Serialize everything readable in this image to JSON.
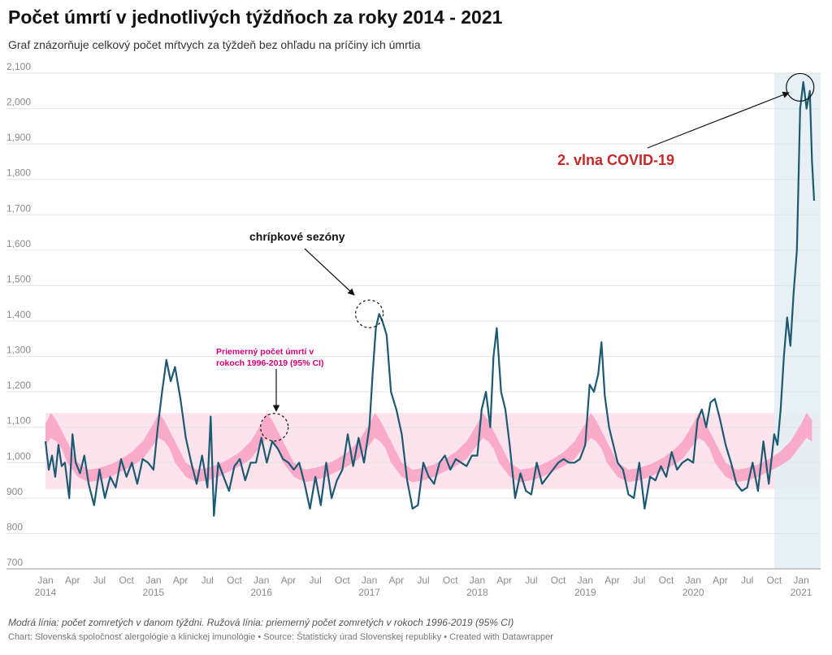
{
  "title": "Počet úmrtí v jednotlivých týždňoch za roky 2014 - 2021",
  "subtitle": "Graf znázorňuje celkový počet mŕtvych za týždeň bez ohľadu na príčiny ich úmrtia",
  "footer": {
    "note": "Modrá línia: počet zomretých v danom týždni. Ružová línia: priemerný počet zomretých v rokoch 1996-2019 (95% CI)",
    "credit": "Chart: Slovenská spoločnosť alergológie a klinickej imunológie • Source: Štatistický úrad Slovenskej republiky • Created with Datawrapper"
  },
  "annotations": {
    "flu": "chrípkové sezóny",
    "covid": "2. vlna COVID-19",
    "avg_line1": "Priemerný počet úmrtí v",
    "avg_line2": "rokoch 1996-2019 (95% CI)"
  },
  "colors": {
    "weekly_line": "#1b5a72",
    "ci_band": "#f9a8c7",
    "range_band": "#fde3ec",
    "covid_shade": "#e4eef4",
    "covid_text": "#c62828",
    "avg_text": "#d6007a"
  },
  "chart_data": {
    "type": "line",
    "ylim": [
      700,
      2100
    ],
    "yticks": [
      700,
      800,
      900,
      1000,
      1100,
      1200,
      1300,
      1400,
      1500,
      1600,
      1700,
      1800,
      1900,
      2000,
      2100
    ],
    "ytick_labels": [
      "700",
      "800",
      "900",
      "1,000",
      "1,100",
      "1,200",
      "1,300",
      "1,400",
      "1,500",
      "1,600",
      "1,700",
      "1,800",
      "1,900",
      "2,000",
      "2,100"
    ],
    "xrange": [
      2014.0,
      2021.18
    ],
    "xticks": [
      {
        "label": "Jan",
        "sub": "2014"
      },
      {
        "label": "Apr",
        "sub": ""
      },
      {
        "label": "Jul",
        "sub": ""
      },
      {
        "label": "Oct",
        "sub": ""
      },
      {
        "label": "Jan",
        "sub": "2015"
      },
      {
        "label": "Apr",
        "sub": ""
      },
      {
        "label": "Jul",
        "sub": ""
      },
      {
        "label": "Oct",
        "sub": ""
      },
      {
        "label": "Jan",
        "sub": "2016"
      },
      {
        "label": "Apr",
        "sub": ""
      },
      {
        "label": "Jul",
        "sub": ""
      },
      {
        "label": "Oct",
        "sub": ""
      },
      {
        "label": "Jan",
        "sub": "2017"
      },
      {
        "label": "Apr",
        "sub": ""
      },
      {
        "label": "Jul",
        "sub": ""
      },
      {
        "label": "Oct",
        "sub": ""
      },
      {
        "label": "Jan",
        "sub": "2018"
      },
      {
        "label": "Apr",
        "sub": ""
      },
      {
        "label": "Jul",
        "sub": ""
      },
      {
        "label": "Oct",
        "sub": ""
      },
      {
        "label": "Jan",
        "sub": "2019"
      },
      {
        "label": "Apr",
        "sub": ""
      },
      {
        "label": "Jul",
        "sub": ""
      },
      {
        "label": "Oct",
        "sub": ""
      },
      {
        "label": "Jan",
        "sub": "2020"
      },
      {
        "label": "Apr",
        "sub": ""
      },
      {
        "label": "Jul",
        "sub": ""
      },
      {
        "label": "Oct",
        "sub": ""
      },
      {
        "label": "Jan",
        "sub": "2021"
      }
    ],
    "covid_shaded_from": 2020.75,
    "ci_outer_range": [
      925,
      1140
    ],
    "series": [
      {
        "name": "Modrá línia: počet zomretých v danom týždni",
        "x": [
          2014.0,
          2014.03,
          2014.06,
          2014.09,
          2014.12,
          2014.15,
          2014.18,
          2014.22,
          2014.25,
          2014.28,
          2014.32,
          2014.36,
          2014.4,
          2014.45,
          2014.5,
          2014.55,
          2014.6,
          2014.65,
          2014.7,
          2014.75,
          2014.8,
          2014.85,
          2014.9,
          2014.95,
          2015.0,
          2015.04,
          2015.08,
          2015.12,
          2015.16,
          2015.2,
          2015.25,
          2015.3,
          2015.35,
          2015.4,
          2015.45,
          2015.5,
          2015.53,
          2015.56,
          2015.6,
          2015.65,
          2015.7,
          2015.75,
          2015.8,
          2015.85,
          2015.9,
          2015.95,
          2016.0,
          2016.05,
          2016.1,
          2016.15,
          2016.2,
          2016.25,
          2016.3,
          2016.35,
          2016.4,
          2016.45,
          2016.5,
          2016.55,
          2016.6,
          2016.65,
          2016.7,
          2016.75,
          2016.8,
          2016.85,
          2016.9,
          2016.95,
          2017.0,
          2017.03,
          2017.06,
          2017.09,
          2017.12,
          2017.16,
          2017.2,
          2017.25,
          2017.3,
          2017.35,
          2017.4,
          2017.45,
          2017.5,
          2017.55,
          2017.6,
          2017.65,
          2017.7,
          2017.75,
          2017.8,
          2017.85,
          2017.9,
          2017.95,
          2018.0,
          2018.04,
          2018.08,
          2018.12,
          2018.15,
          2018.18,
          2018.22,
          2018.26,
          2018.3,
          2018.35,
          2018.4,
          2018.45,
          2018.5,
          2018.55,
          2018.6,
          2018.65,
          2018.7,
          2018.75,
          2018.8,
          2018.85,
          2018.9,
          2018.95,
          2019.0,
          2019.04,
          2019.08,
          2019.12,
          2019.15,
          2019.18,
          2019.22,
          2019.26,
          2019.3,
          2019.35,
          2019.4,
          2019.45,
          2019.5,
          2019.55,
          2019.6,
          2019.65,
          2019.7,
          2019.75,
          2019.8,
          2019.85,
          2019.9,
          2019.95,
          2020.0,
          2020.04,
          2020.08,
          2020.12,
          2020.16,
          2020.2,
          2020.25,
          2020.3,
          2020.35,
          2020.4,
          2020.45,
          2020.5,
          2020.55,
          2020.6,
          2020.65,
          2020.7,
          2020.75,
          2020.78,
          2020.81,
          2020.84,
          2020.87,
          2020.9,
          2020.93,
          2020.96,
          2020.99,
          2021.02,
          2021.05,
          2021.08,
          2021.1,
          2021.12
        ],
        "values": [
          1060,
          980,
          1020,
          960,
          1050,
          990,
          1000,
          900,
          1080,
          1000,
          970,
          1020,
          940,
          880,
          980,
          900,
          960,
          930,
          1010,
          960,
          1000,
          940,
          1010,
          1000,
          980,
          1100,
          1200,
          1290,
          1230,
          1270,
          1180,
          1070,
          1000,
          940,
          1020,
          930,
          1130,
          850,
          1000,
          960,
          920,
          990,
          1010,
          950,
          1000,
          1000,
          1070,
          1000,
          1060,
          1040,
          1010,
          1000,
          980,
          1000,
          940,
          870,
          960,
          880,
          1000,
          900,
          950,
          980,
          1080,
          990,
          1070,
          1000,
          1100,
          1250,
          1380,
          1420,
          1400,
          1360,
          1200,
          1150,
          1080,
          950,
          870,
          880,
          1000,
          960,
          940,
          1000,
          1020,
          980,
          1010,
          1000,
          990,
          1020,
          1020,
          1150,
          1200,
          1100,
          1300,
          1380,
          1200,
          1150,
          1050,
          900,
          970,
          920,
          910,
          1000,
          940,
          960,
          980,
          1000,
          1010,
          1000,
          1000,
          1010,
          1050,
          1220,
          1200,
          1250,
          1340,
          1190,
          1100,
          1050,
          1000,
          980,
          910,
          900,
          1000,
          870,
          960,
          950,
          990,
          960,
          1030,
          980,
          1000,
          1010,
          1000,
          1120,
          1150,
          1100,
          1170,
          1180,
          1120,
          1050,
          1000,
          940,
          920,
          930,
          1000,
          920,
          1060,
          940,
          1080,
          1050,
          1150,
          1300,
          1410,
          1330,
          1480,
          1600,
          2000,
          2075,
          2000,
          2050,
          1850,
          1740
        ]
      },
      {
        "name": "Ružová línia: priemerný počet zomretých v rokoch 1996-2019 (95% CI)",
        "x": [
          2014.0,
          2014.05,
          2014.1,
          2014.15,
          2014.2,
          2014.25,
          2014.3,
          2014.4,
          2014.5,
          2014.6,
          2014.7,
          2014.8,
          2014.9,
          2015.0
        ],
        "low": [
          1050,
          1070,
          1060,
          1040,
          1000,
          980,
          960,
          945,
          950,
          960,
          975,
          990,
          1010,
          1050
        ],
        "high": [
          1110,
          1140,
          1120,
          1090,
          1060,
          1030,
          1000,
          980,
          985,
          995,
          1010,
          1030,
          1060,
          1110
        ],
        "periodic": true
      }
    ],
    "circles": [
      {
        "x": 2016.12,
        "y": 1100,
        "style": "dashed"
      },
      {
        "x": 2017.0,
        "y": 1420,
        "style": "dashed"
      },
      {
        "x": 2020.99,
        "y": 2060,
        "style": "solid"
      }
    ]
  }
}
